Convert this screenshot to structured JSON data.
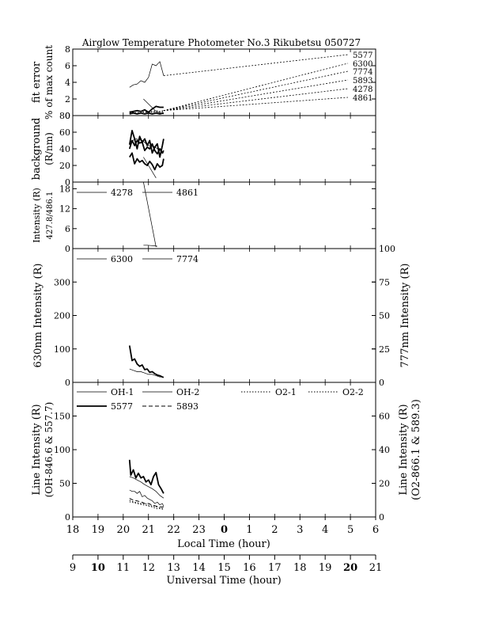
{
  "chart_data": {
    "type": "line",
    "title": "Airglow Temperature Photometer No.3  Rikubetsu  050727",
    "x_axis": {
      "label": "Local Time (hour)",
      "ticks": [
        "18",
        "19",
        "20",
        "21",
        "22",
        "23",
        "0",
        "1",
        "2",
        "3",
        "4",
        "5",
        "6"
      ],
      "range": [
        18,
        30
      ]
    },
    "x_axis_secondary": {
      "label": "Universal Time (hour)",
      "ticks": [
        "9",
        "10",
        "11",
        "12",
        "13",
        "14",
        "15",
        "16",
        "17",
        "18",
        "19",
        "20",
        "21"
      ]
    },
    "panels": [
      {
        "id": "fit",
        "ylabel_line1": "fit error",
        "ylabel_line2": "% of max count",
        "ylim": [
          0,
          8
        ],
        "yticks": [
          "0",
          "2",
          "4",
          "6",
          "8"
        ],
        "legend_right": [
          "5577",
          "6300",
          "7774",
          "5893",
          "4278",
          "4861"
        ],
        "series": [
          {
            "name": "5577",
            "style": "thin",
            "x": [
              20.25,
              20.4,
              20.55,
              20.7,
              20.85,
              21.0,
              21.15,
              21.3,
              21.45,
              21.6
            ],
            "y": [
              3.4,
              3.7,
              3.8,
              4.2,
              4.0,
              4.6,
              6.2,
              6.0,
              6.5,
              4.8
            ]
          },
          {
            "name": "6300",
            "style": "thick",
            "x": [
              20.25,
              20.4,
              20.55,
              20.7,
              20.85,
              21.0,
              21.15,
              21.3,
              21.45,
              21.6
            ],
            "y": [
              0.4,
              0.5,
              0.6,
              0.5,
              0.7,
              0.4,
              0.8,
              1.1,
              1.0,
              1.0
            ]
          },
          {
            "name": "7774",
            "style": "dot",
            "x": [
              20.25,
              20.4,
              20.55,
              20.7,
              20.85,
              21.0,
              21.15,
              21.3,
              21.45,
              21.6
            ],
            "y": [
              0.3,
              0.4,
              0.3,
              0.5,
              0.4,
              0.4,
              0.5,
              0.6,
              0.5,
              0.6
            ]
          },
          {
            "name": "5893",
            "style": "dot",
            "x": [
              20.25,
              20.4,
              20.55,
              20.7,
              20.85,
              21.0,
              21.15,
              21.3,
              21.45,
              21.6
            ],
            "y": [
              0.5,
              0.4,
              0.6,
              0.5,
              0.4,
              0.5,
              0.4,
              0.5,
              0.4,
              0.5
            ]
          },
          {
            "name": "4278",
            "style": "thick",
            "x": [
              20.25,
              20.4,
              20.55,
              20.7,
              20.85,
              21.0,
              21.15,
              21.3,
              21.45,
              21.6
            ],
            "y": [
              0.2,
              0.3,
              0.2,
              0.3,
              0.2,
              0.3,
              0.2,
              0.3,
              0.2,
              0.3
            ]
          },
          {
            "name": "4861",
            "style": "thin",
            "x": [
              20.8,
              21.3,
              21.6
            ],
            "y": [
              2.0,
              0.5,
              0.2
            ]
          }
        ]
      },
      {
        "id": "background",
        "ylabel_line1": "background",
        "ylabel_line2": "(R/nm)",
        "ylim": [
          0,
          80
        ],
        "yticks": [
          "0",
          "20",
          "40",
          "60",
          "80"
        ],
        "series": [
          {
            "name": "a",
            "style": "thick",
            "x": [
              20.25,
              20.35,
              20.45,
              20.55,
              20.65,
              20.75,
              20.85,
              20.95,
              21.05,
              21.15,
              21.25,
              21.35,
              21.45,
              21.55,
              21.6
            ],
            "y": [
              45,
              62,
              52,
              40,
              55,
              48,
              52,
              44,
              50,
              35,
              42,
              46,
              30,
              44,
              52
            ]
          },
          {
            "name": "b",
            "style": "thick",
            "x": [
              20.25,
              20.35,
              20.45,
              20.55,
              20.65,
              20.75,
              20.85,
              20.95,
              21.05,
              21.15,
              21.25,
              21.35,
              21.45,
              21.55,
              21.6
            ],
            "y": [
              40,
              50,
              44,
              50,
              47,
              48,
              38,
              42,
              40,
              46,
              38,
              34,
              40,
              35,
              38
            ]
          },
          {
            "name": "c",
            "style": "thick",
            "x": [
              20.25,
              20.35,
              20.45,
              20.55,
              20.65,
              20.75,
              20.85,
              20.95,
              21.05,
              21.15,
              21.25,
              21.35,
              21.45,
              21.55,
              21.6
            ],
            "y": [
              30,
              35,
              22,
              28,
              24,
              26,
              22,
              20,
              25,
              21,
              15,
              22,
              18,
              20,
              28
            ]
          },
          {
            "name": "d",
            "style": "thin",
            "x": [
              20.25,
              20.5,
              20.75,
              21.0,
              21.25,
              21.5,
              21.6
            ],
            "y": [
              48,
              52,
              50,
              44,
              42,
              38,
              35
            ]
          },
          {
            "name": "e",
            "style": "thin",
            "x": [
              20.8,
              21.3
            ],
            "y": [
              30,
              5
            ]
          }
        ]
      },
      {
        "id": "intensity",
        "ylabel_line1": "Intensity (R)",
        "ylabel_line2": "427.8/486.1",
        "ylim": [
          0,
          20
        ],
        "yticks": [
          "0",
          "6",
          "12",
          "18"
        ],
        "legend": [
          "4278",
          "4861"
        ],
        "series": [
          {
            "name": "4278",
            "style": "thin",
            "x": [
              20.8,
              20.95,
              21.1,
              21.25,
              21.35
            ],
            "y": [
              1.0,
              1.0,
              0.9,
              0.8,
              0.7
            ]
          },
          {
            "name": "4861",
            "style": "thin",
            "x": [
              20.8,
              21.3
            ],
            "y": [
              20,
              0.5
            ]
          }
        ]
      },
      {
        "id": "630",
        "ylabel": "630nm Intensity  (R)",
        "ylabel_right": "777nm Intensity  (R)",
        "ylim": [
          0,
          400
        ],
        "yticks": [
          "0",
          "100",
          "200",
          "300"
        ],
        "ylim_right": [
          0,
          100
        ],
        "yticks_right": [
          "0",
          "25",
          "50",
          "75",
          "100"
        ],
        "legend": [
          "6300",
          "7774"
        ],
        "series": [
          {
            "name": "6300",
            "style": "thick",
            "axis": "left",
            "x": [
              20.25,
              20.35,
              20.45,
              20.55,
              20.65,
              20.75,
              20.85,
              20.95,
              21.05,
              21.15,
              21.25,
              21.35,
              21.45,
              21.55,
              21.6
            ],
            "y": [
              110,
              65,
              70,
              55,
              48,
              52,
              38,
              40,
              30,
              32,
              26,
              22,
              20,
              16,
              15
            ]
          },
          {
            "name": "7774",
            "style": "thin",
            "axis": "right",
            "x": [
              20.25,
              20.4,
              20.55,
              20.7,
              20.85,
              21.0,
              21.15,
              21.3,
              21.45,
              21.6
            ],
            "y": [
              10,
              9,
              8,
              8,
              7,
              6,
              6,
              5,
              4,
              4
            ]
          }
        ]
      },
      {
        "id": "line",
        "ylabel_line1": "Line Intensity (R)",
        "ylabel_line2": "(OH-846.6 & 557.7)",
        "ylabel_right_line1": "Line Intensity (R)",
        "ylabel_right_line2": "(O2-866.1 & 589.3)",
        "ylim": [
          0,
          200
        ],
        "yticks": [
          "0",
          "50",
          "100",
          "150"
        ],
        "ylim_right": [
          0,
          80
        ],
        "yticks_right": [
          "0",
          "20",
          "40",
          "60"
        ],
        "legend": [
          "OH-1",
          "OH-2",
          "O2-1",
          "O2-2",
          "5577",
          "5893"
        ],
        "series": [
          {
            "name": "5577",
            "style": "thick",
            "axis": "left",
            "x": [
              20.25,
              20.3,
              20.4,
              20.5,
              20.6,
              20.7,
              20.8,
              20.9,
              21.0,
              21.1,
              21.2,
              21.3,
              21.4,
              21.5,
              21.6
            ],
            "y": [
              85,
              62,
              70,
              58,
              65,
              58,
              60,
              52,
              55,
              48,
              60,
              66,
              48,
              42,
              35
            ]
          },
          {
            "name": "OH-2",
            "style": "thin",
            "axis": "left",
            "x": [
              20.25,
              20.4,
              20.55,
              20.7,
              20.85,
              21.0,
              21.15,
              21.3,
              21.45,
              21.6
            ],
            "y": [
              60,
              58,
              55,
              52,
              48,
              45,
              42,
              38,
              32,
              28
            ]
          },
          {
            "name": "OH-1",
            "style": "thin",
            "axis": "left",
            "x": [
              20.25,
              20.35,
              20.45,
              20.55,
              20.65,
              20.75,
              20.85,
              20.95,
              21.05,
              21.15,
              21.25,
              21.35,
              21.45,
              21.55,
              21.6
            ],
            "y": [
              40,
              38,
              38,
              35,
              38,
              30,
              32,
              28,
              26,
              24,
              20,
              22,
              18,
              20,
              16
            ]
          },
          {
            "name": "O2-1",
            "style": "dot",
            "axis": "right",
            "x": [
              20.25,
              20.4,
              20.55,
              20.7,
              20.85,
              21.0,
              21.15,
              21.3,
              21.45,
              21.6
            ],
            "y": [
              10,
              9,
              8.5,
              8,
              8,
              7,
              6.5,
              6,
              5.5,
              5
            ]
          },
          {
            "name": "O2-2",
            "style": "dot",
            "axis": "right",
            "x": [
              20.25,
              20.4,
              20.55,
              20.7,
              20.85,
              21.0,
              21.15,
              21.3,
              21.45,
              21.6
            ],
            "y": [
              9,
              8.5,
              8,
              7.5,
              7,
              6.5,
              6,
              5,
              5,
              4.5
            ]
          },
          {
            "name": "5893",
            "style": "dash",
            "axis": "right",
            "x": [
              20.25,
              20.4,
              20.55,
              20.7,
              20.85,
              21.0,
              21.15,
              21.3,
              21.45,
              21.6
            ],
            "y": [
              11,
              10,
              9.5,
              9,
              8,
              8,
              7,
              6.5,
              6,
              6
            ]
          }
        ]
      }
    ]
  }
}
